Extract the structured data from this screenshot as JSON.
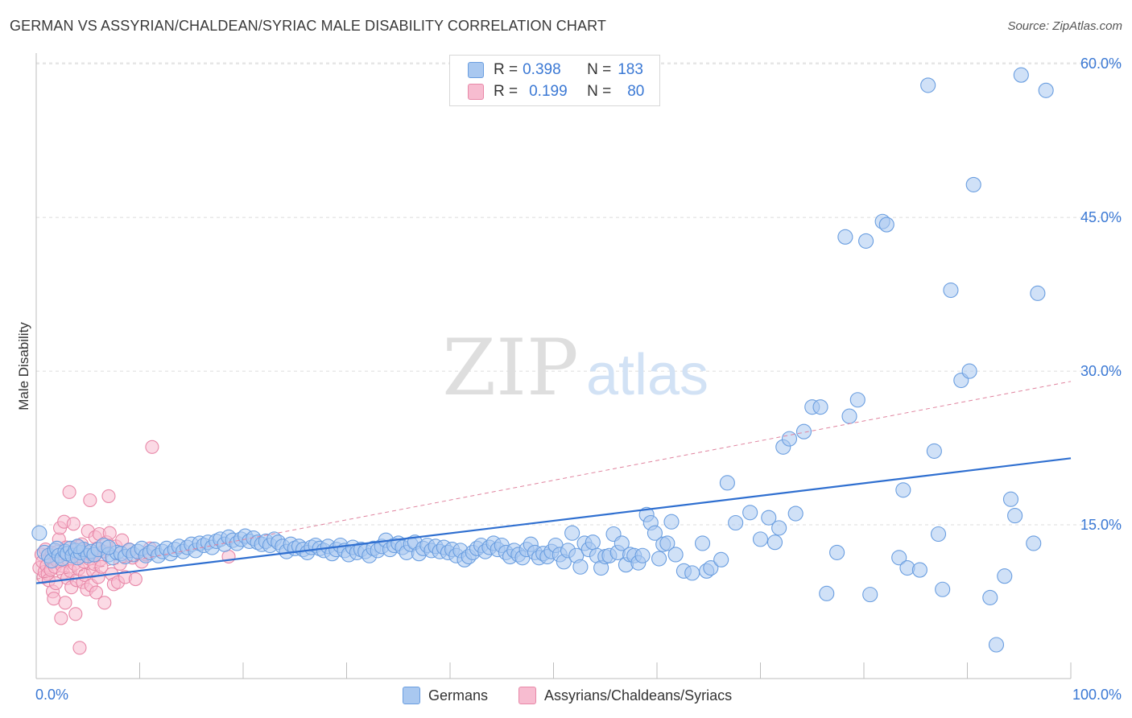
{
  "title": "GERMAN VS ASSYRIAN/CHALDEAN/SYRIAC MALE DISABILITY CORRELATION CHART",
  "source": "Source: ZipAtlas.com",
  "watermark": {
    "zip": "ZIP",
    "atlas": "atlas"
  },
  "legend": {
    "r_label": "R =",
    "n_label": "N =",
    "germans": {
      "r": "0.398",
      "n": "183",
      "color": "#a9c8f0",
      "border": "#6a9ee0"
    },
    "assyrians": {
      "r": "0.199",
      "n": "80",
      "color": "#f7bcd0",
      "border": "#e888a8"
    }
  },
  "chart_data": {
    "type": "scatter",
    "title": "GERMAN VS ASSYRIAN/CHALDEAN/SYRIAC MALE DISABILITY CORRELATION CHART",
    "xlabel": "",
    "ylabel": "Male Disability",
    "xlim": [
      0,
      100
    ],
    "ylim": [
      0,
      63
    ],
    "x_tick_labels": [
      "0.0%",
      "100.0%"
    ],
    "y_tick_labels": [
      "15.0%",
      "30.0%",
      "45.0%",
      "60.0%"
    ],
    "y_ticks": [
      15,
      30,
      45,
      60
    ],
    "grid": true,
    "series": [
      {
        "name": "Germans",
        "color": "#6a9ee0",
        "fill": "#a9c8f0",
        "trendline": {
          "x": [
            0,
            100
          ],
          "y": [
            9.3,
            21.5
          ],
          "style": "solid",
          "color": "#2f6fd0"
        },
        "points": [
          [
            0.3,
            14.2
          ],
          [
            0.8,
            12.3
          ],
          [
            1.2,
            12.0
          ],
          [
            1.5,
            11.5
          ],
          [
            1.8,
            12.5
          ],
          [
            2.0,
            12.7
          ],
          [
            2.2,
            12.0
          ],
          [
            2.5,
            11.7
          ],
          [
            2.8,
            12.4
          ],
          [
            3.0,
            12.2
          ],
          [
            3.3,
            12.7
          ],
          [
            3.5,
            12.0
          ],
          [
            3.8,
            12.5
          ],
          [
            4.0,
            11.8
          ],
          [
            4.3,
            12.3
          ],
          [
            4.6,
            12.6
          ],
          [
            5.0,
            12.0
          ],
          [
            5.3,
            12.4
          ],
          [
            5.6,
            12.1
          ],
          [
            6.0,
            12.6
          ],
          [
            6.5,
            13.0
          ],
          [
            7.0,
            12.1
          ],
          [
            7.4,
            11.8
          ],
          [
            7.8,
            12.3
          ],
          [
            8.2,
            12.2
          ],
          [
            8.6,
            11.9
          ],
          [
            9.0,
            12.5
          ],
          [
            9.4,
            12.1
          ],
          [
            9.8,
            12.4
          ],
          [
            10.2,
            12.7
          ],
          [
            10.6,
            12.0
          ],
          [
            11.0,
            12.3
          ],
          [
            11.4,
            12.6
          ],
          [
            11.8,
            12.0
          ],
          [
            12.2,
            12.4
          ],
          [
            12.6,
            12.7
          ],
          [
            13.0,
            12.2
          ],
          [
            13.4,
            12.6
          ],
          [
            13.8,
            12.9
          ],
          [
            14.2,
            12.4
          ],
          [
            14.6,
            12.8
          ],
          [
            15.0,
            13.1
          ],
          [
            15.4,
            12.5
          ],
          [
            15.8,
            13.2
          ],
          [
            16.2,
            13.0
          ],
          [
            16.6,
            13.3
          ],
          [
            17.0,
            12.8
          ],
          [
            17.4,
            13.4
          ],
          [
            17.8,
            13.6
          ],
          [
            18.2,
            13.1
          ],
          [
            18.6,
            13.8
          ],
          [
            19.0,
            13.5
          ],
          [
            19.4,
            13.2
          ],
          [
            19.8,
            13.6
          ],
          [
            20.2,
            13.9
          ],
          [
            20.6,
            13.4
          ],
          [
            21.0,
            13.7
          ],
          [
            21.4,
            13.3
          ],
          [
            21.8,
            13.1
          ],
          [
            22.2,
            13.4
          ],
          [
            22.6,
            13.0
          ],
          [
            23.0,
            13.6
          ],
          [
            23.4,
            13.3
          ],
          [
            23.8,
            12.9
          ],
          [
            24.2,
            12.4
          ],
          [
            24.6,
            13.1
          ],
          [
            25.0,
            12.7
          ],
          [
            25.4,
            12.9
          ],
          [
            25.8,
            12.6
          ],
          [
            26.2,
            12.3
          ],
          [
            26.6,
            12.8
          ],
          [
            27.0,
            13.0
          ],
          [
            27.4,
            12.7
          ],
          [
            27.8,
            12.5
          ],
          [
            28.2,
            12.9
          ],
          [
            28.6,
            12.2
          ],
          [
            29.0,
            12.6
          ],
          [
            29.4,
            13.0
          ],
          [
            29.8,
            12.5
          ],
          [
            30.2,
            12.1
          ],
          [
            30.6,
            12.8
          ],
          [
            31.0,
            12.3
          ],
          [
            31.4,
            12.6
          ],
          [
            31.8,
            12.4
          ],
          [
            32.2,
            12.0
          ],
          [
            32.6,
            12.7
          ],
          [
            33.0,
            12.5
          ],
          [
            33.4,
            12.9
          ],
          [
            33.8,
            13.5
          ],
          [
            34.2,
            12.6
          ],
          [
            34.6,
            13.0
          ],
          [
            35.0,
            13.2
          ],
          [
            35.4,
            12.8
          ],
          [
            35.8,
            12.3
          ],
          [
            36.2,
            13.1
          ],
          [
            36.6,
            13.3
          ],
          [
            37.0,
            12.2
          ],
          [
            37.4,
            12.7
          ],
          [
            37.8,
            13.0
          ],
          [
            38.2,
            12.5
          ],
          [
            38.6,
            12.9
          ],
          [
            39.0,
            12.4
          ],
          [
            39.4,
            12.8
          ],
          [
            39.8,
            12.3
          ],
          [
            40.2,
            12.6
          ],
          [
            40.6,
            12.0
          ],
          [
            41.0,
            12.5
          ],
          [
            41.4,
            11.6
          ],
          [
            41.8,
            11.9
          ],
          [
            42.2,
            12.3
          ],
          [
            42.6,
            12.7
          ],
          [
            43.0,
            13.0
          ],
          [
            43.4,
            12.4
          ],
          [
            43.8,
            12.8
          ],
          [
            44.2,
            13.2
          ],
          [
            44.6,
            12.6
          ],
          [
            45.0,
            13.0
          ],
          [
            45.4,
            12.3
          ],
          [
            45.8,
            11.9
          ],
          [
            46.2,
            12.5
          ],
          [
            46.6,
            12.1
          ],
          [
            47.0,
            11.8
          ],
          [
            47.4,
            12.6
          ],
          [
            47.8,
            13.1
          ],
          [
            48.2,
            12.3
          ],
          [
            48.6,
            11.8
          ],
          [
            49.0,
            12.2
          ],
          [
            49.4,
            11.9
          ],
          [
            49.8,
            12.4
          ],
          [
            50.2,
            13.0
          ],
          [
            50.6,
            12.1
          ],
          [
            51.0,
            11.4
          ],
          [
            51.4,
            12.5
          ],
          [
            51.8,
            14.2
          ],
          [
            52.2,
            12.0
          ],
          [
            52.6,
            10.9
          ],
          [
            53.0,
            13.2
          ],
          [
            53.4,
            12.6
          ],
          [
            53.8,
            13.3
          ],
          [
            54.2,
            12.0
          ],
          [
            54.6,
            10.8
          ],
          [
            55.0,
            11.9
          ],
          [
            55.4,
            12.0
          ],
          [
            55.8,
            14.1
          ],
          [
            56.2,
            12.3
          ],
          [
            56.6,
            13.2
          ],
          [
            57.0,
            11.1
          ],
          [
            57.4,
            12.1
          ],
          [
            57.8,
            12.0
          ],
          [
            58.2,
            11.3
          ],
          [
            58.6,
            12.0
          ],
          [
            59.0,
            16.0
          ],
          [
            59.4,
            15.2
          ],
          [
            59.8,
            14.2
          ],
          [
            60.2,
            11.7
          ],
          [
            60.6,
            13.1
          ],
          [
            61.0,
            13.2
          ],
          [
            61.4,
            15.3
          ],
          [
            61.8,
            12.1
          ],
          [
            62.6,
            10.5
          ],
          [
            63.4,
            10.3
          ],
          [
            64.4,
            13.2
          ],
          [
            64.8,
            10.5
          ],
          [
            65.2,
            10.8
          ],
          [
            66.2,
            11.6
          ],
          [
            66.8,
            19.1
          ],
          [
            67.6,
            15.2
          ],
          [
            69.0,
            16.2
          ],
          [
            70.0,
            13.6
          ],
          [
            70.8,
            15.7
          ],
          [
            71.4,
            13.3
          ],
          [
            71.8,
            14.7
          ],
          [
            72.2,
            22.6
          ],
          [
            72.8,
            23.4
          ],
          [
            73.4,
            16.1
          ],
          [
            74.2,
            24.1
          ],
          [
            75.0,
            26.5
          ],
          [
            75.8,
            26.5
          ],
          [
            76.4,
            8.3
          ],
          [
            77.4,
            12.3
          ],
          [
            78.2,
            43.1
          ],
          [
            78.6,
            25.6
          ],
          [
            79.4,
            27.2
          ],
          [
            80.2,
            42.7
          ],
          [
            80.6,
            8.2
          ],
          [
            81.8,
            44.6
          ],
          [
            82.2,
            44.3
          ],
          [
            83.4,
            11.8
          ],
          [
            83.8,
            18.4
          ],
          [
            84.2,
            10.8
          ],
          [
            85.4,
            10.6
          ],
          [
            86.2,
            57.9
          ],
          [
            86.8,
            22.2
          ],
          [
            87.2,
            14.1
          ],
          [
            87.6,
            8.7
          ],
          [
            88.4,
            37.9
          ],
          [
            89.4,
            29.1
          ],
          [
            90.2,
            30.0
          ],
          [
            90.6,
            48.2
          ],
          [
            92.2,
            7.9
          ],
          [
            92.8,
            3.3
          ],
          [
            93.6,
            10.0
          ],
          [
            94.2,
            17.5
          ],
          [
            94.6,
            15.9
          ],
          [
            95.2,
            58.9
          ],
          [
            96.4,
            13.2
          ],
          [
            96.8,
            37.6
          ],
          [
            97.6,
            57.4
          ],
          [
            4.0,
            12.9
          ],
          [
            7.0,
            12.8
          ]
        ]
      },
      {
        "name": "Assyrians/Chaldeans/Syriacs",
        "color": "#e888a8",
        "fill": "#f7bcd0",
        "trendline": {
          "x": [
            0,
            100
          ],
          "y": [
            9.7,
            29.0
          ],
          "style": "dashed",
          "color": "#e0849f"
        },
        "points": [
          [
            0.3,
            10.8
          ],
          [
            0.5,
            12.1
          ],
          [
            0.6,
            11.4
          ],
          [
            0.7,
            9.9
          ],
          [
            0.8,
            10.4
          ],
          [
            0.9,
            12.6
          ],
          [
            1.0,
            11.0
          ],
          [
            1.1,
            10.2
          ],
          [
            1.2,
            9.6
          ],
          [
            1.3,
            11.8
          ],
          [
            1.4,
            10.6
          ],
          [
            1.5,
            12.3
          ],
          [
            1.6,
            8.5
          ],
          [
            1.7,
            7.8
          ],
          [
            1.8,
            10.9
          ],
          [
            1.9,
            9.3
          ],
          [
            2.0,
            11.5
          ],
          [
            2.1,
            12.4
          ],
          [
            2.2,
            13.6
          ],
          [
            2.3,
            14.7
          ],
          [
            2.4,
            5.9
          ],
          [
            2.5,
            11.0
          ],
          [
            2.6,
            10.3
          ],
          [
            2.7,
            15.3
          ],
          [
            2.8,
            7.4
          ],
          [
            2.9,
            12.8
          ],
          [
            3.0,
            9.8
          ],
          [
            3.1,
            11.6
          ],
          [
            3.2,
            18.2
          ],
          [
            3.3,
            10.5
          ],
          [
            3.4,
            8.9
          ],
          [
            3.5,
            12.2
          ],
          [
            3.6,
            15.1
          ],
          [
            3.7,
            11.2
          ],
          [
            3.8,
            6.3
          ],
          [
            3.9,
            9.6
          ],
          [
            4.0,
            12.9
          ],
          [
            4.1,
            10.7
          ],
          [
            4.2,
            3.0
          ],
          [
            4.3,
            11.9
          ],
          [
            4.4,
            13.1
          ],
          [
            4.5,
            9.4
          ],
          [
            4.6,
            11.4
          ],
          [
            4.7,
            10.1
          ],
          [
            4.8,
            12.5
          ],
          [
            4.9,
            8.7
          ],
          [
            5.0,
            14.4
          ],
          [
            5.1,
            11.7
          ],
          [
            5.2,
            17.4
          ],
          [
            5.3,
            9.1
          ],
          [
            5.4,
            12.0
          ],
          [
            5.5,
            10.5
          ],
          [
            5.6,
            11.2
          ],
          [
            5.7,
            13.8
          ],
          [
            5.8,
            8.4
          ],
          [
            5.9,
            12.7
          ],
          [
            6.0,
            9.9
          ],
          [
            6.1,
            14.1
          ],
          [
            6.2,
            11.6
          ],
          [
            6.3,
            10.9
          ],
          [
            6.5,
            12.4
          ],
          [
            6.6,
            7.4
          ],
          [
            6.8,
            13.3
          ],
          [
            7.0,
            17.8
          ],
          [
            7.1,
            14.2
          ],
          [
            7.3,
            10.2
          ],
          [
            7.5,
            9.2
          ],
          [
            7.7,
            12.9
          ],
          [
            7.9,
            9.4
          ],
          [
            8.1,
            11.2
          ],
          [
            8.3,
            13.5
          ],
          [
            8.6,
            9.9
          ],
          [
            9.0,
            12.6
          ],
          [
            9.3,
            11.8
          ],
          [
            9.6,
            9.7
          ],
          [
            10.2,
            11.4
          ],
          [
            10.6,
            12.1
          ],
          [
            11.0,
            12.7
          ],
          [
            11.2,
            22.6
          ],
          [
            18.6,
            11.9
          ]
        ]
      }
    ]
  }
}
